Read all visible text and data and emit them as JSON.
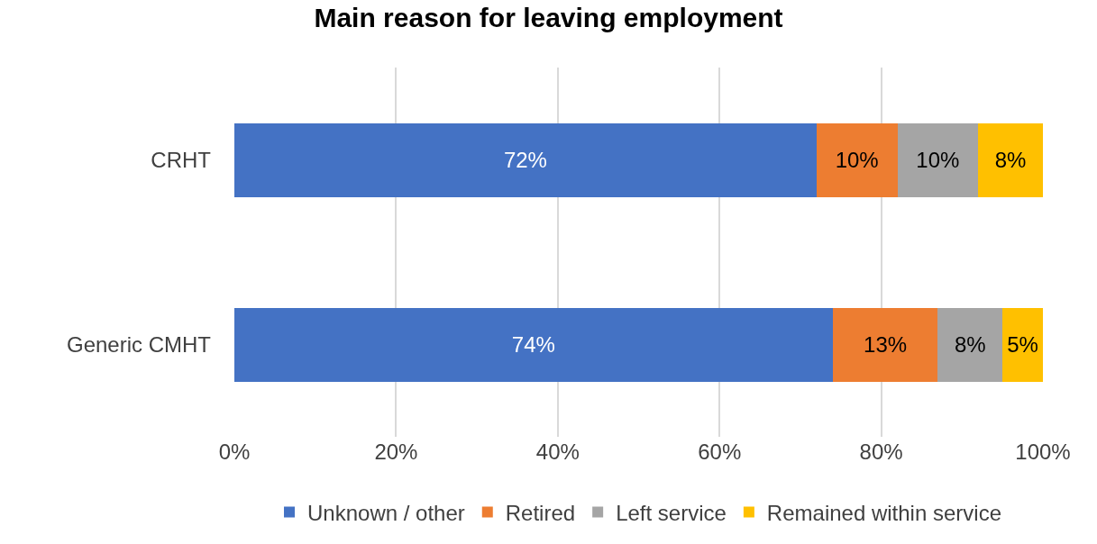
{
  "chart_data": {
    "type": "bar",
    "title": "Main reason for leaving employment",
    "orientation": "horizontal",
    "stacked": true,
    "categories": [
      "CRHT",
      "Generic CMHT"
    ],
    "series": [
      {
        "name": "Unknown / other",
        "color": "#4472c4",
        "values": [
          72,
          74
        ],
        "value_labels": [
          "72%",
          "74%"
        ]
      },
      {
        "name": "Retired",
        "color": "#ed7d31",
        "values": [
          10,
          13
        ],
        "value_labels": [
          "10%",
          "13%"
        ]
      },
      {
        "name": "Left service",
        "color": "#a5a5a5",
        "values": [
          10,
          8
        ],
        "value_labels": [
          "10%",
          "8%"
        ]
      },
      {
        "name": "Remained within service",
        "color": "#ffc000",
        "values": [
          8,
          5
        ],
        "value_labels": [
          "8%",
          "5%"
        ]
      }
    ],
    "xlim": [
      0,
      100
    ],
    "xticks": [
      {
        "value": 0,
        "label": "0%"
      },
      {
        "value": 20,
        "label": "20%"
      },
      {
        "value": 40,
        "label": "40%"
      },
      {
        "value": 60,
        "label": "60%"
      },
      {
        "value": 80,
        "label": "80%"
      },
      {
        "value": 100,
        "label": "100%"
      }
    ],
    "grid": "x",
    "legend": "bottom"
  }
}
